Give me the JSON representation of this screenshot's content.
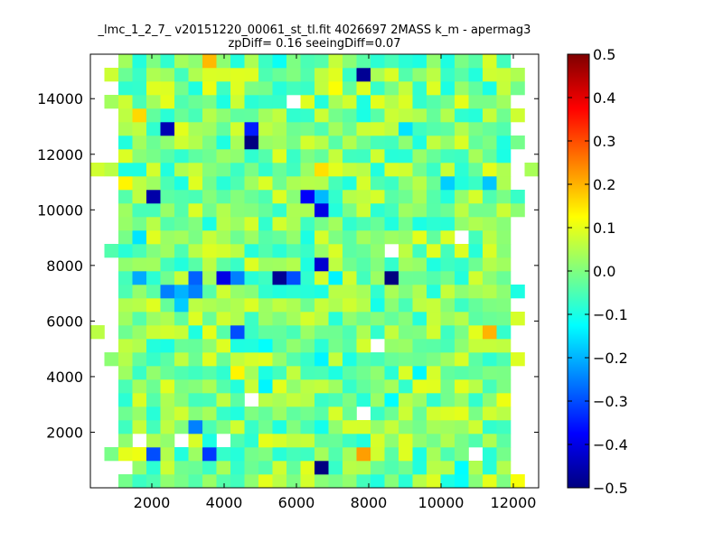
{
  "chart_data": {
    "type": "heatmap",
    "title": "_lmc_1_2_7_ v20151220_00061_st_tl.fit 4026697 2MASS k_m - apermag3",
    "subtitle": "zpDiff= 0.16 seeingDiff=0.07",
    "xlabel": "",
    "ylabel": "",
    "xlim": [
      300,
      12700
    ],
    "ylim": [
      0,
      15600
    ],
    "xticks": [
      "2000",
      "4000",
      "6000",
      "8000",
      "10000",
      "12000"
    ],
    "xtick_values": [
      2000,
      4000,
      6000,
      8000,
      10000,
      12000
    ],
    "yticks": [
      "2000",
      "4000",
      "6000",
      "8000",
      "10000",
      "12000",
      "14000"
    ],
    "ytick_values": [
      2000,
      4000,
      6000,
      8000,
      10000,
      12000,
      14000
    ],
    "grid": false,
    "colormap": "jet",
    "colorbar": {
      "range": [
        -0.5,
        0.5
      ],
      "ticks": [
        "0.5",
        "0.4",
        "0.3",
        "0.2",
        "0.1",
        "0.0",
        "−0.1",
        "−0.2",
        "−0.3",
        "−0.4",
        "−0.5"
      ],
      "tick_values": [
        0.5,
        0.4,
        0.3,
        0.2,
        0.1,
        0.0,
        -0.1,
        -0.2,
        -0.3,
        -0.4,
        -0.5
      ]
    },
    "grid_x0": 300,
    "cell_w": 387.5,
    "grid_y0": 0,
    "cell_h": 487.5,
    "n_cols": 32,
    "n_rows": 32,
    "cells": [
      {
        "c": 4,
        "r": 21,
        "v": -0.46
      },
      {
        "c": 13,
        "r": 15,
        "v": -0.48
      },
      {
        "c": 16,
        "r": 1,
        "v": -0.5
      },
      {
        "c": 21,
        "r": 15,
        "v": -0.5
      },
      {
        "c": 11,
        "r": 25,
        "v": -0.5
      },
      {
        "c": 5,
        "r": 26,
        "v": -0.45
      },
      {
        "c": 19,
        "r": 2,
        "v": 0.22
      },
      {
        "c": 19,
        "r": 30,
        "v": -0.48
      },
      {
        "c": 7,
        "r": 15,
        "v": -0.28
      },
      {
        "c": 7,
        "r": 14,
        "v": -0.25
      },
      {
        "c": 9,
        "r": 15,
        "v": -0.4
      },
      {
        "c": 14,
        "r": 15,
        "v": -0.3
      },
      {
        "c": 15,
        "r": 21,
        "v": -0.38
      },
      {
        "c": 10,
        "r": 15,
        "v": -0.25
      },
      {
        "c": 6,
        "r": 14,
        "v": -0.2
      },
      {
        "c": 5,
        "r": 14,
        "v": -0.25
      },
      {
        "c": 7,
        "r": 4,
        "v": -0.25
      },
      {
        "c": 11,
        "r": 26,
        "v": -0.35
      },
      {
        "c": 10,
        "r": 11,
        "v": -0.3
      },
      {
        "c": 4,
        "r": 2,
        "v": -0.3
      },
      {
        "c": 8,
        "r": 2,
        "v": -0.32
      },
      {
        "c": 16,
        "r": 20,
        "v": -0.4
      },
      {
        "c": 16,
        "r": 16,
        "v": -0.42
      }
    ]
  }
}
